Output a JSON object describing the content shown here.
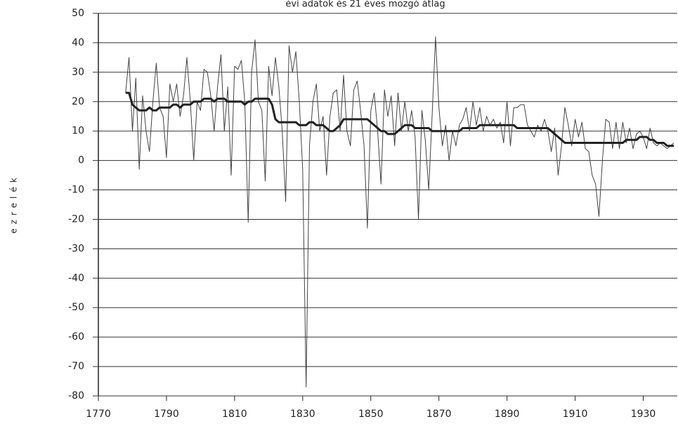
{
  "chart_data": {
    "type": "line",
    "title": "évi adatok és 21 éves mozgó átlag",
    "y_label": "ezrelék",
    "x": [
      1778,
      1779,
      1780,
      1781,
      1782,
      1783,
      1784,
      1785,
      1786,
      1787,
      1788,
      1789,
      1790,
      1791,
      1792,
      1793,
      1794,
      1795,
      1796,
      1797,
      1798,
      1799,
      1800,
      1801,
      1802,
      1803,
      1804,
      1805,
      1806,
      1807,
      1808,
      1809,
      1810,
      1811,
      1812,
      1813,
      1814,
      1815,
      1816,
      1817,
      1818,
      1819,
      1820,
      1821,
      1822,
      1823,
      1824,
      1825,
      1826,
      1827,
      1828,
      1829,
      1830,
      1831,
      1832,
      1833,
      1834,
      1835,
      1836,
      1837,
      1838,
      1839,
      1840,
      1841,
      1842,
      1843,
      1844,
      1845,
      1846,
      1847,
      1848,
      1849,
      1850,
      1851,
      1852,
      1853,
      1854,
      1855,
      1856,
      1857,
      1858,
      1859,
      1860,
      1861,
      1862,
      1863,
      1864,
      1865,
      1866,
      1867,
      1868,
      1869,
      1870,
      1871,
      1872,
      1873,
      1874,
      1875,
      1876,
      1877,
      1878,
      1879,
      1880,
      1881,
      1882,
      1883,
      1884,
      1885,
      1886,
      1887,
      1888,
      1889,
      1890,
      1891,
      1892,
      1893,
      1894,
      1895,
      1896,
      1897,
      1898,
      1899,
      1900,
      1901,
      1902,
      1903,
      1904,
      1905,
      1906,
      1907,
      1908,
      1909,
      1910,
      1911,
      1912,
      1913,
      1914,
      1915,
      1916,
      1917,
      1918,
      1919,
      1920,
      1921,
      1922,
      1923,
      1924,
      1925,
      1926,
      1927,
      1928,
      1929,
      1930,
      1931,
      1932,
      1933,
      1934,
      1935,
      1936,
      1937,
      1938,
      1939
    ],
    "series": [
      {
        "color": "#444444",
        "width": 1,
        "values": [
          23,
          35,
          10,
          28,
          -3,
          22,
          10,
          3,
          20,
          33,
          18,
          15,
          1,
          26,
          20,
          26,
          15,
          22,
          35,
          20,
          0,
          20,
          17,
          31,
          30,
          22,
          10,
          25,
          36,
          10,
          25,
          -5,
          32,
          31,
          34,
          20,
          -21,
          30,
          41,
          20,
          17,
          -7,
          32,
          22,
          35,
          25,
          10,
          -14,
          39,
          30,
          37,
          20,
          -3,
          -77,
          5,
          20,
          26,
          10,
          15,
          -5,
          15,
          23,
          24,
          10,
          29,
          10,
          5,
          24,
          27,
          17,
          5,
          -23,
          17,
          23,
          10,
          -8,
          24,
          15,
          22,
          5,
          23,
          10,
          20,
          10,
          17,
          8,
          -20,
          17,
          7,
          -10,
          15,
          42,
          18,
          5,
          12,
          0,
          10,
          5,
          12,
          14,
          18,
          10,
          20,
          12,
          18,
          10,
          15,
          12,
          14,
          11,
          13,
          6,
          20,
          5,
          18,
          18,
          19,
          19,
          12,
          10,
          8,
          12,
          10,
          14,
          10,
          3,
          11,
          -5,
          5,
          18,
          12,
          5,
          14,
          8,
          13,
          4,
          3,
          -5,
          -8,
          -19,
          0,
          14,
          13,
          4,
          13,
          4,
          13,
          6,
          11,
          4,
          9,
          10,
          8,
          4,
          11,
          6,
          5,
          6,
          5,
          4,
          5,
          6
        ]
      },
      {
        "color": "#222222",
        "width": 3,
        "values": [
          23,
          23,
          19,
          18,
          17,
          17,
          17,
          18,
          17,
          17,
          18,
          18,
          18,
          18,
          19,
          19,
          18,
          19,
          19,
          19,
          20,
          20,
          20,
          21,
          21,
          21,
          20,
          21,
          21,
          21,
          20,
          20,
          20,
          20,
          20,
          19,
          20,
          20,
          21,
          21,
          21,
          21,
          21,
          19,
          14,
          13,
          13,
          13,
          13,
          13,
          13,
          12,
          12,
          12,
          13,
          13,
          12,
          12,
          12,
          11,
          10,
          10,
          11,
          12,
          14,
          14,
          14,
          14,
          14,
          14,
          14,
          14,
          13,
          12,
          11,
          10,
          10,
          9,
          9,
          9,
          10,
          11,
          12,
          12,
          12,
          11,
          11,
          11,
          11,
          11,
          10,
          10,
          10,
          10,
          10,
          10,
          10,
          10,
          10,
          11,
          11,
          11,
          11,
          11,
          12,
          12,
          12,
          12,
          12,
          12,
          12,
          12,
          12,
          12,
          12,
          11,
          11,
          11,
          11,
          11,
          11,
          11,
          11,
          11,
          11,
          10,
          9,
          8,
          7,
          6,
          6,
          6,
          6,
          6,
          6,
          6,
          6,
          6,
          6,
          6,
          6,
          6,
          6,
          6,
          6,
          6,
          6,
          7,
          7,
          7,
          7,
          8,
          8,
          8,
          7,
          7,
          6,
          6,
          6,
          5,
          5,
          5
        ]
      }
    ],
    "xlim": [
      1770,
      1940
    ],
    "ylim": [
      -80,
      50
    ],
    "xticks": [
      1770,
      1790,
      1810,
      1830,
      1850,
      1870,
      1890,
      1910,
      1930
    ],
    "yticks": [
      -80,
      -70,
      -60,
      -50,
      -40,
      -30,
      -20,
      -10,
      0,
      10,
      20,
      30,
      40,
      50
    ],
    "grid": true
  }
}
